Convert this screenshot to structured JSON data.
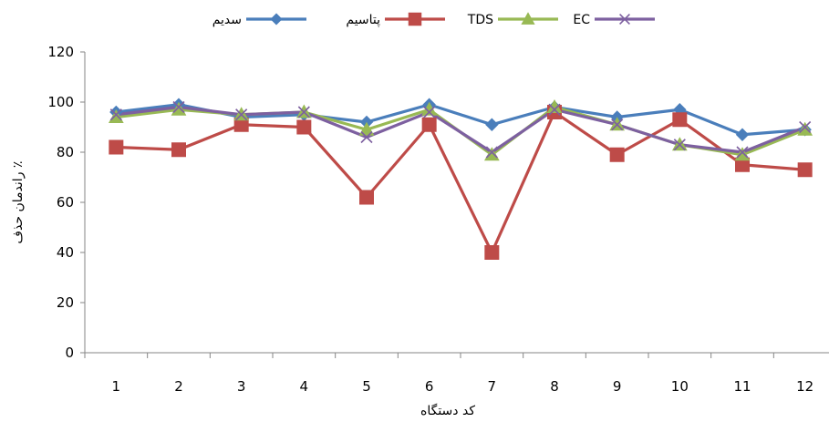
{
  "chart_data": {
    "type": "line",
    "x": [
      1,
      2,
      3,
      4,
      5,
      6,
      7,
      8,
      9,
      10,
      11,
      12
    ],
    "xlabel": "کد دستگاه",
    "ylabel": "راندمان حذف ٪",
    "ylim": [
      0,
      120
    ],
    "yticks": [
      0,
      20,
      40,
      60,
      80,
      100,
      120
    ],
    "grid": false,
    "legend_position": "top",
    "series": [
      {
        "name": "سدیم",
        "color": "#4A7EBB",
        "marker": "diamond",
        "values": [
          96,
          99,
          94,
          95,
          92,
          99,
          91,
          98,
          94,
          97,
          87,
          89
        ]
      },
      {
        "name": "پتاسیم",
        "color": "#BE4B48",
        "marker": "square",
        "values": [
          82,
          81,
          91,
          90,
          62,
          91,
          40,
          96,
          79,
          93,
          75,
          73
        ]
      },
      {
        "name": "TDS",
        "color": "#98B954",
        "marker": "triangle",
        "values": [
          94,
          97,
          95,
          96,
          89,
          97,
          79,
          98,
          91,
          83,
          79,
          89
        ]
      },
      {
        "name": "EC",
        "color": "#7D60A0",
        "marker": "x",
        "values": [
          95,
          98,
          95,
          96,
          86,
          96,
          80,
          97,
          91,
          83,
          80,
          90
        ]
      }
    ]
  }
}
